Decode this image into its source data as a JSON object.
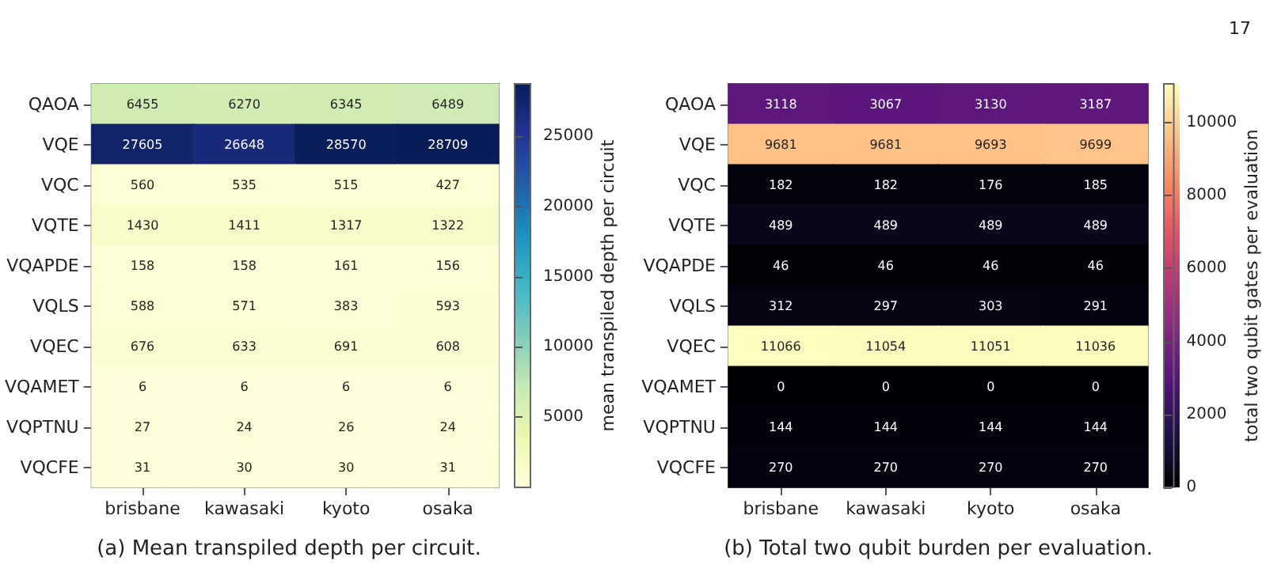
{
  "chart_data": [
    {
      "type": "heatmap",
      "categories": [
        "brisbane",
        "kawasaki",
        "kyoto",
        "osaka"
      ],
      "y_categories": [
        "QAOA",
        "VQE",
        "VQC",
        "VQTE",
        "VQAPDE",
        "VQLS",
        "VQEC",
        "VQAMET",
        "VQPTNU",
        "VQCFE"
      ],
      "cells": [
        [
          6455,
          6270,
          6345,
          6489
        ],
        [
          27605,
          26648,
          28570,
          28709
        ],
        [
          560,
          535,
          515,
          427
        ],
        [
          1430,
          1411,
          1317,
          1322
        ],
        [
          158,
          158,
          161,
          156
        ],
        [
          588,
          571,
          383,
          593
        ],
        [
          676,
          633,
          691,
          608
        ],
        [
          6,
          6,
          6,
          6
        ],
        [
          27,
          24,
          26,
          24
        ],
        [
          31,
          30,
          30,
          31
        ]
      ],
      "clim": [
        6,
        28709
      ],
      "cticks": [
        5000,
        10000,
        15000,
        20000,
        25000
      ],
      "clabel": "mean transpiled depth per circuit",
      "data_labels": true,
      "annotations": [
        "(a) Mean transpiled depth per circuit."
      ]
    },
    {
      "type": "heatmap",
      "categories": [
        "brisbane",
        "kawasaki",
        "kyoto",
        "osaka"
      ],
      "y_categories": [
        "QAOA",
        "VQE",
        "VQC",
        "VQTE",
        "VQAPDE",
        "VQLS",
        "VQEC",
        "VQAMET",
        "VQPTNU",
        "VQCFE"
      ],
      "cells": [
        [
          3118,
          3067,
          3130,
          3187
        ],
        [
          9681,
          9681,
          9693,
          9699
        ],
        [
          182,
          182,
          176,
          185
        ],
        [
          489,
          489,
          489,
          489
        ],
        [
          46,
          46,
          46,
          46
        ],
        [
          312,
          297,
          303,
          291
        ],
        [
          11066,
          11054,
          11051,
          11036
        ],
        [
          0,
          0,
          0,
          0
        ],
        [
          144,
          144,
          144,
          144
        ],
        [
          270,
          270,
          270,
          270
        ]
      ],
      "clim": [
        0,
        11066
      ],
      "cticks": [
        0,
        2000,
        4000,
        6000,
        8000,
        10000
      ],
      "clabel": "total two qubit gates per evaluation",
      "data_labels": true,
      "annotations": [
        "(b) Total two qubit burden per evaluation.",
        "17"
      ]
    }
  ]
}
